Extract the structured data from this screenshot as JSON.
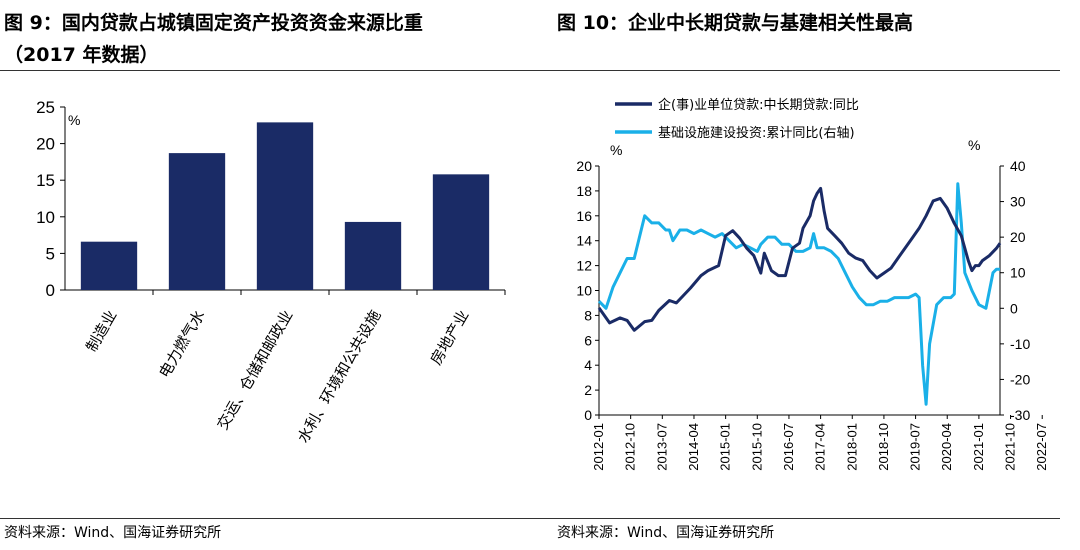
{
  "left": {
    "title_line1": "图 9：国内贷款占城镇固定资产投资资金来源比重",
    "title_line2": "（2017 年数据）",
    "source": "资料来源：Wind、国海证券研究所",
    "chart_data": {
      "type": "bar",
      "title": "图 9：国内贷款占城镇固定资产投资资金来源比重（2017 年数据）",
      "unit_label": "%",
      "categories": [
        "制造业",
        "电力燃气水",
        "交运、仓储和邮政业",
        "水利、环境和公共设施",
        "房地产业"
      ],
      "values": [
        6.6,
        18.7,
        22.9,
        9.3,
        15.8
      ],
      "ylim": [
        0,
        25
      ],
      "yticks": [
        0,
        5,
        10,
        15,
        20,
        25
      ],
      "bar_color": "#1a2b66"
    }
  },
  "right": {
    "title": "图 10：企业中长期贷款与基建相关性最高",
    "source": "资料来源：Wind、国海证券研究所",
    "chart_data": {
      "type": "line",
      "title": "图 10：企业中长期贷款与基建相关性最高",
      "left_unit": "%",
      "right_unit": "%",
      "y_left_lim": [
        0,
        20
      ],
      "y_left_ticks": [
        0,
        2,
        4,
        6,
        8,
        10,
        12,
        14,
        16,
        18,
        20
      ],
      "y_right_lim": [
        -30,
        40
      ],
      "y_right_ticks": [
        -30,
        -20,
        -10,
        0,
        10,
        20,
        30,
        40
      ],
      "x_start": "2012-01",
      "x_end": "2022-10",
      "x_tick_labels": [
        "2012-01",
        "2012-10",
        "2013-07",
        "2014-04",
        "2015-01",
        "2015-10",
        "2016-07",
        "2017-04",
        "2018-01",
        "2018-10",
        "2019-07",
        "2020-04",
        "2021-01",
        "2021-10",
        "2022-07"
      ],
      "x_tick_month_index": [
        0,
        9,
        18,
        27,
        36,
        45,
        54,
        63,
        72,
        81,
        90,
        99,
        108,
        117,
        126
      ],
      "series": [
        {
          "name": "企(事)业单位贷款:中长期贷款:同比",
          "axis": "left",
          "color": "#1a2b66",
          "points": [
            [
              0,
              8.6
            ],
            [
              3,
              7.4
            ],
            [
              6,
              7.8
            ],
            [
              8,
              7.6
            ],
            [
              10,
              6.8
            ],
            [
              13,
              7.5
            ],
            [
              15,
              7.6
            ],
            [
              17,
              8.4
            ],
            [
              20,
              9.2
            ],
            [
              22,
              9.0
            ],
            [
              24,
              9.6
            ],
            [
              26,
              10.2
            ],
            [
              29,
              11.2
            ],
            [
              31,
              11.6
            ],
            [
              34,
              12.0
            ],
            [
              36,
              14.4
            ],
            [
              38,
              14.8
            ],
            [
              40,
              14.2
            ],
            [
              42,
              13.4
            ],
            [
              44,
              12.8
            ],
            [
              46,
              11.4
            ],
            [
              47,
              13.0
            ],
            [
              49,
              11.6
            ],
            [
              51,
              11.2
            ],
            [
              53,
              11.2
            ],
            [
              55,
              13.4
            ],
            [
              57,
              13.8
            ],
            [
              58,
              15.0
            ],
            [
              60,
              16.0
            ],
            [
              61,
              17.2
            ],
            [
              62,
              17.8
            ],
            [
              63,
              18.2
            ],
            [
              64,
              16.4
            ],
            [
              65,
              15.0
            ],
            [
              67,
              14.4
            ],
            [
              69,
              13.8
            ],
            [
              71,
              13.0
            ],
            [
              73,
              12.6
            ],
            [
              75,
              12.4
            ],
            [
              77,
              11.6
            ],
            [
              79,
              11.0
            ],
            [
              81,
              11.4
            ],
            [
              83,
              11.8
            ],
            [
              85,
              12.6
            ],
            [
              87,
              13.4
            ],
            [
              89,
              14.2
            ],
            [
              91,
              15.0
            ],
            [
              93,
              16.0
            ],
            [
              95,
              17.2
            ],
            [
              97,
              17.4
            ],
            [
              99,
              16.6
            ],
            [
              101,
              15.4
            ],
            [
              103,
              14.4
            ],
            [
              104,
              13.4
            ],
            [
              105,
              12.4
            ],
            [
              106,
              11.6
            ],
            [
              107,
              12.0
            ],
            [
              108,
              12.0
            ],
            [
              109,
              12.4
            ],
            [
              111,
              12.8
            ],
            [
              113,
              13.4
            ],
            [
              114,
              13.8
            ]
          ]
        },
        {
          "name": "基础设施建设投资:累计同比(右轴)",
          "axis": "right",
          "color": "#1ab0e8",
          "points": [
            [
              0,
              2
            ],
            [
              2,
              0
            ],
            [
              4,
              6
            ],
            [
              6,
              10
            ],
            [
              8,
              14
            ],
            [
              10,
              14
            ],
            [
              12,
              22
            ],
            [
              13,
              26
            ],
            [
              15,
              24
            ],
            [
              17,
              24
            ],
            [
              19,
              22
            ],
            [
              20,
              22
            ],
            [
              21,
              19
            ],
            [
              23,
              22
            ],
            [
              25,
              22
            ],
            [
              27,
              21
            ],
            [
              29,
              22
            ],
            [
              31,
              21
            ],
            [
              33,
              20
            ],
            [
              35,
              21
            ],
            [
              37,
              19
            ],
            [
              39,
              17
            ],
            [
              41,
              18
            ],
            [
              43,
              17
            ],
            [
              45,
              16
            ],
            [
              46,
              18
            ],
            [
              48,
              20
            ],
            [
              50,
              20
            ],
            [
              52,
              18
            ],
            [
              54,
              18
            ],
            [
              56,
              16
            ],
            [
              58,
              16
            ],
            [
              60,
              17
            ],
            [
              61,
              21
            ],
            [
              62,
              17
            ],
            [
              64,
              17
            ],
            [
              66,
              16
            ],
            [
              68,
              14
            ],
            [
              70,
              10
            ],
            [
              72,
              6
            ],
            [
              74,
              3
            ],
            [
              76,
              1
            ],
            [
              78,
              1
            ],
            [
              80,
              2
            ],
            [
              82,
              2
            ],
            [
              84,
              3
            ],
            [
              86,
              3
            ],
            [
              88,
              3
            ],
            [
              90,
              4
            ],
            [
              91,
              3
            ],
            [
              92,
              -16
            ],
            [
              93,
              -27
            ],
            [
              94,
              -10
            ],
            [
              96,
              1
            ],
            [
              98,
              3
            ],
            [
              100,
              3
            ],
            [
              101,
              4
            ],
            [
              102,
              35
            ],
            [
              103,
              24
            ],
            [
              104,
              10
            ],
            [
              106,
              5
            ],
            [
              108,
              1
            ],
            [
              110,
              0
            ],
            [
              112,
              10
            ],
            [
              113,
              11
            ],
            [
              114,
              11
            ]
          ]
        }
      ]
    }
  }
}
